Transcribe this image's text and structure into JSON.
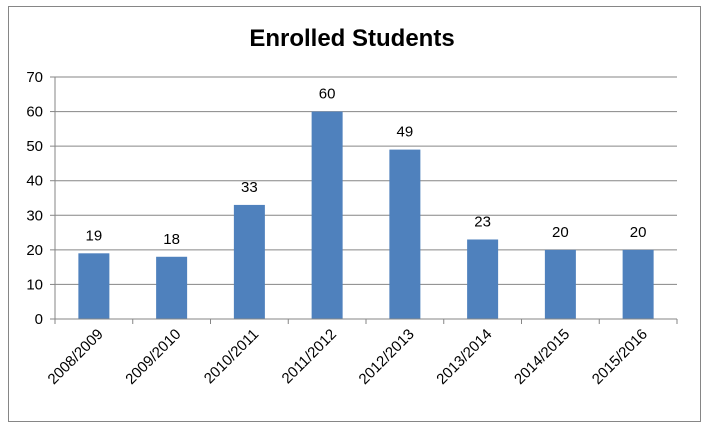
{
  "chart_data": {
    "type": "bar",
    "title": "Enrolled Students",
    "xlabel": "",
    "ylabel": "",
    "categories": [
      "2008/2009",
      "2009/2010",
      "2010/2011",
      "2011/2012",
      "2012/2013",
      "2013/2014",
      "2014/2015",
      "2015/2016"
    ],
    "values": [
      19,
      18,
      33,
      60,
      49,
      23,
      20,
      20
    ],
    "ylim": [
      0,
      70
    ],
    "yticks": [
      0,
      10,
      20,
      30,
      40,
      50,
      60,
      70
    ],
    "grid": true,
    "legend": "none",
    "bar_color": "#4F81BD",
    "grid_color": "#868686"
  }
}
